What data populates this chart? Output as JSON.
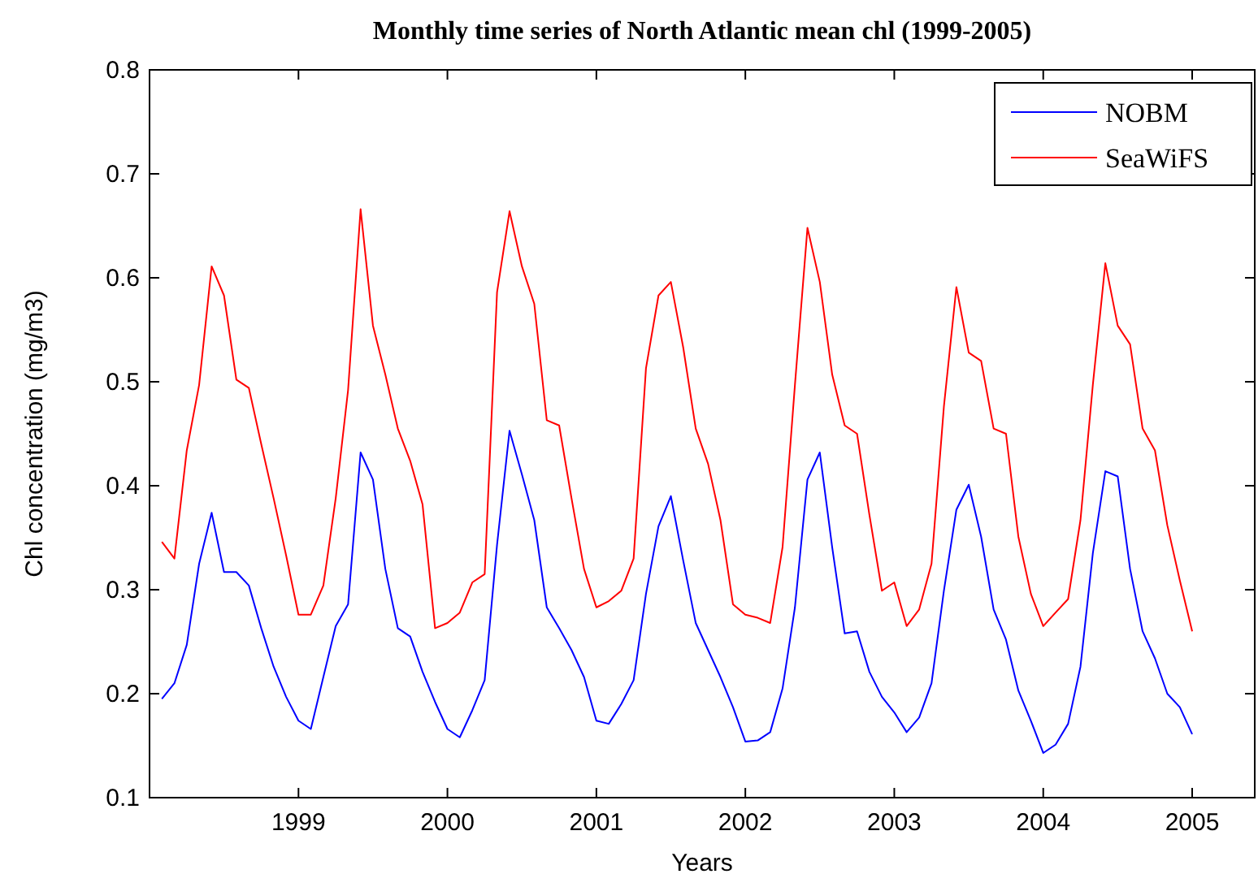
{
  "chart_data": {
    "type": "line",
    "title": "Monthly time series of North Atlantic mean chl (1999-2005)",
    "xlabel": "Years",
    "ylabel": "Chl concentration (mg/m3)",
    "x": [
      1998.083,
      1998.167,
      1998.25,
      1998.333,
      1998.417,
      1998.5,
      1998.583,
      1998.667,
      1998.75,
      1998.833,
      1998.917,
      1999,
      1999.083,
      1999.167,
      1999.25,
      1999.333,
      1999.417,
      1999.5,
      1999.583,
      1999.667,
      1999.75,
      1999.833,
      1999.917,
      2000,
      2000.083,
      2000.167,
      2000.25,
      2000.333,
      2000.417,
      2000.5,
      2000.583,
      2000.667,
      2000.75,
      2000.833,
      2000.917,
      2001,
      2001.083,
      2001.167,
      2001.25,
      2001.333,
      2001.417,
      2001.5,
      2001.583,
      2001.667,
      2001.75,
      2001.833,
      2001.917,
      2002,
      2002.083,
      2002.167,
      2002.25,
      2002.333,
      2002.417,
      2002.5,
      2002.583,
      2002.667,
      2002.75,
      2002.833,
      2002.917,
      2003,
      2003.083,
      2003.167,
      2003.25,
      2003.333,
      2003.417,
      2003.5,
      2003.583,
      2003.667,
      2003.75,
      2003.833,
      2003.917,
      2004,
      2004.083,
      2004.167,
      2004.25,
      2004.333,
      2004.417,
      2004.5,
      2004.583,
      2004.667,
      2004.75,
      2004.833,
      2004.917,
      2005
    ],
    "series": [
      {
        "name": "NOBM",
        "color": "#0000ff",
        "values": [
          0.195,
          0.21,
          0.247,
          0.325,
          0.374,
          0.317,
          0.317,
          0.304,
          0.263,
          0.226,
          0.197,
          0.174,
          0.166,
          0.216,
          0.265,
          0.286,
          0.432,
          0.406,
          0.32,
          0.263,
          0.255,
          0.221,
          0.192,
          0.166,
          0.158,
          0.184,
          0.213,
          0.343,
          0.453,
          0.411,
          0.367,
          0.283,
          0.263,
          0.242,
          0.216,
          0.174,
          0.171,
          0.19,
          0.213,
          0.296,
          0.361,
          0.39,
          0.328,
          0.268,
          0.242,
          0.216,
          0.187,
          0.154,
          0.155,
          0.163,
          0.205,
          0.283,
          0.406,
          0.432,
          0.341,
          0.258,
          0.26,
          0.221,
          0.197,
          0.182,
          0.163,
          0.177,
          0.21,
          0.299,
          0.377,
          0.401,
          0.351,
          0.281,
          0.252,
          0.203,
          0.174,
          0.143,
          0.151,
          0.171,
          0.226,
          0.335,
          0.414,
          0.409,
          0.32,
          0.26,
          0.234,
          0.2,
          0.187,
          0.161
        ]
      },
      {
        "name": "SeaWiFS",
        "color": "#ff0000",
        "values": [
          0.346,
          0.33,
          0.434,
          0.497,
          0.611,
          0.583,
          0.502,
          0.494,
          0.44,
          0.388,
          0.333,
          0.276,
          0.276,
          0.304,
          0.388,
          0.492,
          0.666,
          0.554,
          0.507,
          0.455,
          0.424,
          0.382,
          0.263,
          0.268,
          0.278,
          0.307,
          0.315,
          0.586,
          0.664,
          0.611,
          0.575,
          0.463,
          0.458,
          0.388,
          0.32,
          0.283,
          0.289,
          0.299,
          0.33,
          0.513,
          0.583,
          0.596,
          0.533,
          0.455,
          0.421,
          0.367,
          0.286,
          0.276,
          0.273,
          0.268,
          0.341,
          0.497,
          0.648,
          0.596,
          0.507,
          0.458,
          0.45,
          0.372,
          0.299,
          0.307,
          0.265,
          0.281,
          0.325,
          0.476,
          0.591,
          0.528,
          0.52,
          0.455,
          0.45,
          0.351,
          0.296,
          0.265,
          0.278,
          0.291,
          0.367,
          0.497,
          0.614,
          0.554,
          0.536,
          0.455,
          0.434,
          0.362,
          0.309,
          0.26
        ]
      }
    ],
    "xlim": [
      1998,
      2005.42
    ],
    "xticks": [
      1999,
      2000,
      2001,
      2002,
      2003,
      2004,
      2005
    ],
    "ylim": [
      0.1,
      0.8
    ],
    "yticks": [
      0.1,
      0.2,
      0.3,
      0.4,
      0.5,
      0.6,
      0.7,
      0.8
    ],
    "grid": false,
    "legend": "top right",
    "marker": "none",
    "line_style": "solid"
  }
}
